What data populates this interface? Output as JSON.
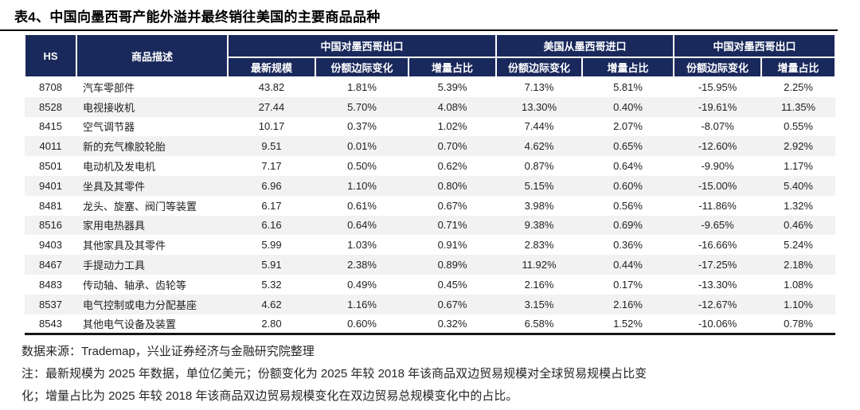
{
  "colors": {
    "header_bg": "#1a295c",
    "header_text": "#ffffff",
    "stripe": "#f2f2f2",
    "body_text": "#1f1f1f",
    "title_text": "#000000",
    "rule": "#000000"
  },
  "title": "表4、中国向墨西哥产能外溢并最终销往美国的主要商品品种",
  "chart_data": {
    "type": "table",
    "title": "表4、中国向墨西哥产能外溢并最终销往美国的主要商品品种",
    "corner_headers": {
      "hs": "HS",
      "desc": "商品描述"
    },
    "column_groups": [
      {
        "label": "中国对墨西哥出口",
        "colspan": 3
      },
      {
        "label": "美国从墨西哥进口",
        "colspan": 2
      },
      {
        "label": "中国对墨西哥出口",
        "colspan": 2
      }
    ],
    "sub_headers": [
      "最新规模",
      "份额边际变化",
      "增量占比",
      "份额边际变化",
      "增量占比",
      "份额边际变化",
      "增量占比"
    ],
    "rows": [
      {
        "hs": "8708",
        "desc": "汽车零部件",
        "values": [
          "43.82",
          "1.81%",
          "5.39%",
          "7.13%",
          "5.81%",
          "-15.95%",
          "2.25%"
        ]
      },
      {
        "hs": "8528",
        "desc": "电视接收机",
        "values": [
          "27.44",
          "5.70%",
          "4.08%",
          "13.30%",
          "0.40%",
          "-19.61%",
          "11.35%"
        ]
      },
      {
        "hs": "8415",
        "desc": "空气调节器",
        "values": [
          "10.17",
          "0.37%",
          "1.02%",
          "7.44%",
          "2.07%",
          "-8.07%",
          "0.55%"
        ]
      },
      {
        "hs": "4011",
        "desc": "新的充气橡胶轮胎",
        "values": [
          "9.51",
          "0.01%",
          "0.70%",
          "4.62%",
          "0.65%",
          "-12.60%",
          "2.92%"
        ]
      },
      {
        "hs": "8501",
        "desc": "电动机及发电机",
        "values": [
          "7.17",
          "0.50%",
          "0.62%",
          "0.87%",
          "0.64%",
          "-9.90%",
          "1.17%"
        ]
      },
      {
        "hs": "9401",
        "desc": "坐具及其零件",
        "values": [
          "6.96",
          "1.10%",
          "0.80%",
          "5.15%",
          "0.60%",
          "-15.00%",
          "5.40%"
        ]
      },
      {
        "hs": "8481",
        "desc": "龙头、旋塞、阀门等装置",
        "values": [
          "6.17",
          "0.61%",
          "0.67%",
          "3.98%",
          "0.56%",
          "-11.86%",
          "1.32%"
        ]
      },
      {
        "hs": "8516",
        "desc": "家用电热器具",
        "values": [
          "6.16",
          "0.64%",
          "0.71%",
          "9.38%",
          "0.69%",
          "-9.65%",
          "0.46%"
        ]
      },
      {
        "hs": "9403",
        "desc": "其他家具及其零件",
        "values": [
          "5.99",
          "1.03%",
          "0.91%",
          "2.83%",
          "0.36%",
          "-16.66%",
          "5.24%"
        ]
      },
      {
        "hs": "8467",
        "desc": "手提动力工具",
        "values": [
          "5.91",
          "2.38%",
          "0.89%",
          "11.92%",
          "0.44%",
          "-17.25%",
          "2.18%"
        ]
      },
      {
        "hs": "8483",
        "desc": "传动轴、轴承、齿轮等",
        "values": [
          "5.32",
          "0.49%",
          "0.45%",
          "2.16%",
          "0.17%",
          "-13.30%",
          "1.08%"
        ]
      },
      {
        "hs": "8537",
        "desc": "电气控制或电力分配基座",
        "values": [
          "4.62",
          "1.16%",
          "0.67%",
          "3.15%",
          "2.16%",
          "-12.67%",
          "1.10%"
        ]
      },
      {
        "hs": "8543",
        "desc": "其他电气设备及装置",
        "values": [
          "2.80",
          "0.60%",
          "0.32%",
          "6.58%",
          "1.52%",
          "-10.06%",
          "0.78%"
        ]
      }
    ]
  },
  "footer": {
    "source": "数据来源：Trademap，兴业证券经济与金融研究院整理",
    "note_line1": "注：最新规模为 2025 年数据，单位亿美元；份额变化为 2025 年较 2018 年该商品双边贸易规模对全球贸易规模占比变",
    "note_line2": "化；增量占比为 2025 年较 2018 年该商品双边贸易规模变化在双边贸易总规模变化中的占比。"
  }
}
